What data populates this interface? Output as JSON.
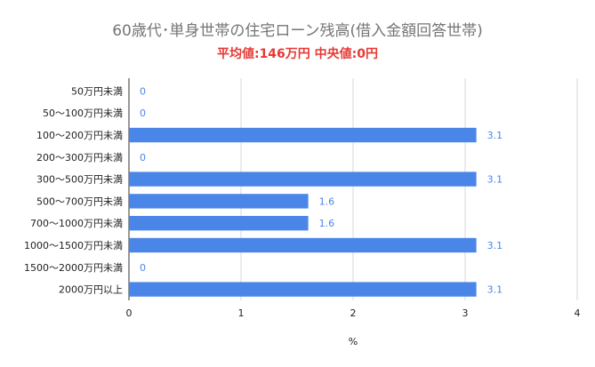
{
  "chart_data": {
    "type": "bar",
    "orientation": "horizontal",
    "title": "60歳代･単身世帯の住宅ローン残高(借入金額回答世帯)",
    "subtitle": "平均値:146万円 中央値:0円",
    "categories": [
      "50万円未満",
      "50～100万円未満",
      "100～200万円未満",
      "200～300万円未満",
      "300～500万円未満",
      "500～700万円未満",
      "700～1000万円未満",
      "1000～1500万円未満",
      "1500～2000万円未満",
      "2000万円以上"
    ],
    "values": [
      0,
      0,
      3.1,
      0,
      3.1,
      1.6,
      1.6,
      3.1,
      0,
      3.1
    ],
    "data_labels": [
      "0",
      "0",
      "3.1",
      "0",
      "3.1",
      "1.6",
      "1.6",
      "3.1",
      "0",
      "3.1"
    ],
    "xlabel": "%",
    "ylabel": "",
    "xlim": [
      0,
      4
    ],
    "x_ticks": [
      "0",
      "1",
      "2",
      "3",
      "4"
    ],
    "grid": "vertical",
    "legend": "none",
    "colors": {
      "bar": "#4a86e8",
      "data_label": "#4a86e8",
      "subtitle": "#e53935",
      "title": "#757575",
      "grid": "#d9d9d9",
      "axis": "#333333"
    }
  }
}
